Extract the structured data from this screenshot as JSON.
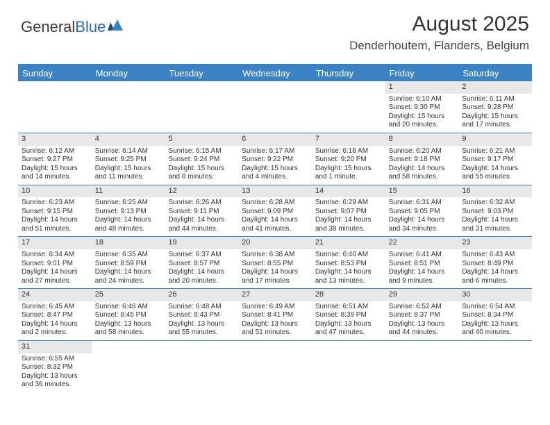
{
  "logo": {
    "text1": "General",
    "text2": "Blue"
  },
  "title": "August 2025",
  "location": "Denderhoutem, Flanders, Belgium",
  "colors": {
    "header_bg": "#3b82c4",
    "daynum_bg": "#e8e8e8",
    "text": "#333333",
    "border": "#3b82c4"
  },
  "dayNames": [
    "Sunday",
    "Monday",
    "Tuesday",
    "Wednesday",
    "Thursday",
    "Friday",
    "Saturday"
  ],
  "weeks": [
    [
      null,
      null,
      null,
      null,
      null,
      {
        "n": "1",
        "sr": "6:10 AM",
        "ss": "9:30 PM",
        "dl": "15 hours and 20 minutes."
      },
      {
        "n": "2",
        "sr": "6:11 AM",
        "ss": "9:28 PM",
        "dl": "15 hours and 17 minutes."
      }
    ],
    [
      {
        "n": "3",
        "sr": "6:12 AM",
        "ss": "9:27 PM",
        "dl": "15 hours and 14 minutes."
      },
      {
        "n": "4",
        "sr": "6:14 AM",
        "ss": "9:25 PM",
        "dl": "15 hours and 11 minutes."
      },
      {
        "n": "5",
        "sr": "6:15 AM",
        "ss": "9:24 PM",
        "dl": "15 hours and 8 minutes."
      },
      {
        "n": "6",
        "sr": "6:17 AM",
        "ss": "9:22 PM",
        "dl": "15 hours and 4 minutes."
      },
      {
        "n": "7",
        "sr": "6:18 AM",
        "ss": "9:20 PM",
        "dl": "15 hours and 1 minute."
      },
      {
        "n": "8",
        "sr": "6:20 AM",
        "ss": "9:18 PM",
        "dl": "14 hours and 58 minutes."
      },
      {
        "n": "9",
        "sr": "6:21 AM",
        "ss": "9:17 PM",
        "dl": "14 hours and 55 minutes."
      }
    ],
    [
      {
        "n": "10",
        "sr": "6:23 AM",
        "ss": "9:15 PM",
        "dl": "14 hours and 51 minutes."
      },
      {
        "n": "11",
        "sr": "6:25 AM",
        "ss": "9:13 PM",
        "dl": "14 hours and 48 minutes."
      },
      {
        "n": "12",
        "sr": "6:26 AM",
        "ss": "9:11 PM",
        "dl": "14 hours and 44 minutes."
      },
      {
        "n": "13",
        "sr": "6:28 AM",
        "ss": "9:09 PM",
        "dl": "14 hours and 41 minutes."
      },
      {
        "n": "14",
        "sr": "6:29 AM",
        "ss": "9:07 PM",
        "dl": "14 hours and 38 minutes."
      },
      {
        "n": "15",
        "sr": "6:31 AM",
        "ss": "9:05 PM",
        "dl": "14 hours and 34 minutes."
      },
      {
        "n": "16",
        "sr": "6:32 AM",
        "ss": "9:03 PM",
        "dl": "14 hours and 31 minutes."
      }
    ],
    [
      {
        "n": "17",
        "sr": "6:34 AM",
        "ss": "9:01 PM",
        "dl": "14 hours and 27 minutes."
      },
      {
        "n": "18",
        "sr": "6:35 AM",
        "ss": "8:59 PM",
        "dl": "14 hours and 24 minutes."
      },
      {
        "n": "19",
        "sr": "6:37 AM",
        "ss": "8:57 PM",
        "dl": "14 hours and 20 minutes."
      },
      {
        "n": "20",
        "sr": "6:38 AM",
        "ss": "8:55 PM",
        "dl": "14 hours and 17 minutes."
      },
      {
        "n": "21",
        "sr": "6:40 AM",
        "ss": "8:53 PM",
        "dl": "14 hours and 13 minutes."
      },
      {
        "n": "22",
        "sr": "6:41 AM",
        "ss": "8:51 PM",
        "dl": "14 hours and 9 minutes."
      },
      {
        "n": "23",
        "sr": "6:43 AM",
        "ss": "8:49 PM",
        "dl": "14 hours and 6 minutes."
      }
    ],
    [
      {
        "n": "24",
        "sr": "6:45 AM",
        "ss": "8:47 PM",
        "dl": "14 hours and 2 minutes."
      },
      {
        "n": "25",
        "sr": "6:46 AM",
        "ss": "8:45 PM",
        "dl": "13 hours and 58 minutes."
      },
      {
        "n": "26",
        "sr": "6:48 AM",
        "ss": "8:43 PM",
        "dl": "13 hours and 55 minutes."
      },
      {
        "n": "27",
        "sr": "6:49 AM",
        "ss": "8:41 PM",
        "dl": "13 hours and 51 minutes."
      },
      {
        "n": "28",
        "sr": "6:51 AM",
        "ss": "8:39 PM",
        "dl": "13 hours and 47 minutes."
      },
      {
        "n": "29",
        "sr": "6:52 AM",
        "ss": "8:37 PM",
        "dl": "13 hours and 44 minutes."
      },
      {
        "n": "30",
        "sr": "6:54 AM",
        "ss": "8:34 PM",
        "dl": "13 hours and 40 minutes."
      }
    ],
    [
      {
        "n": "31",
        "sr": "6:55 AM",
        "ss": "8:32 PM",
        "dl": "13 hours and 36 minutes."
      },
      null,
      null,
      null,
      null,
      null,
      null
    ]
  ],
  "labels": {
    "sunrise": "Sunrise:",
    "sunset": "Sunset:",
    "daylight": "Daylight:"
  }
}
